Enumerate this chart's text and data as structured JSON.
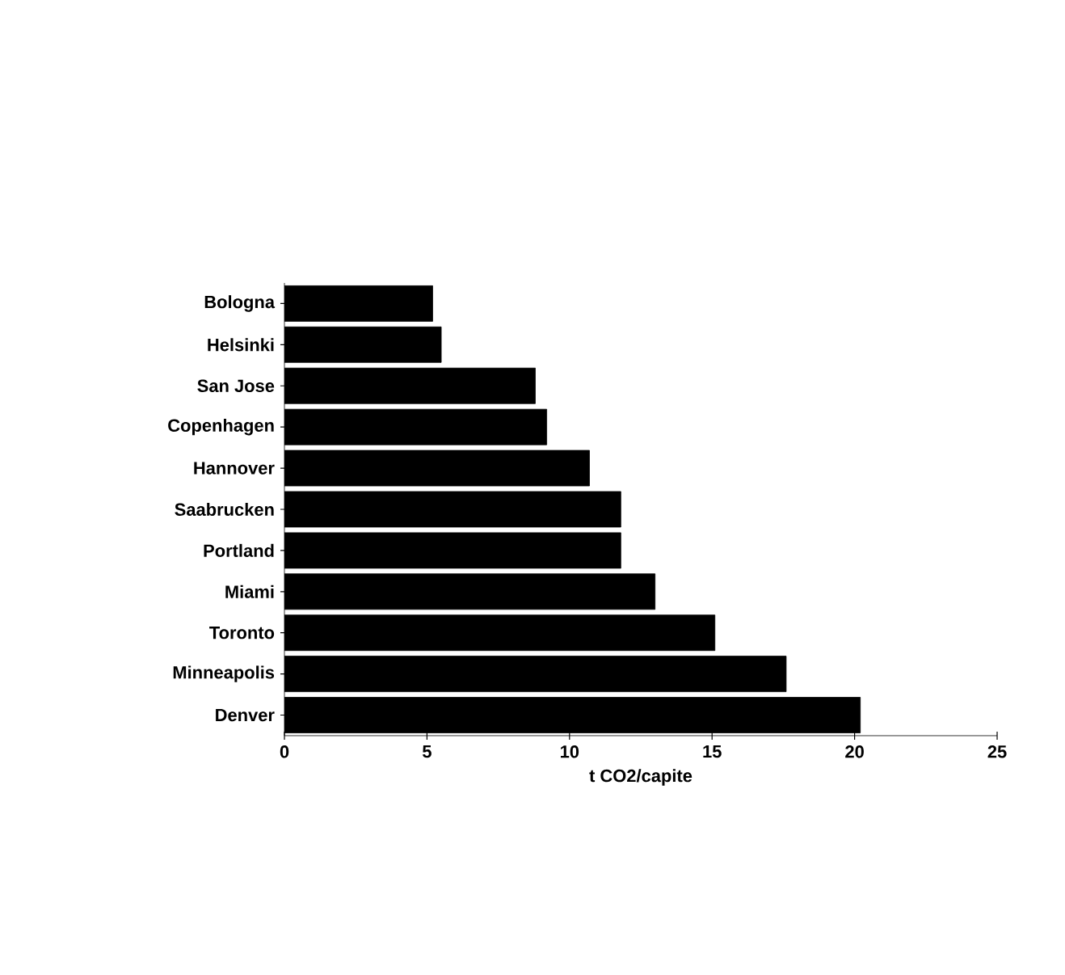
{
  "chart_data": {
    "type": "bar",
    "orientation": "horizontal",
    "xlabel": "t CO2/capite",
    "categories": [
      "Bologna",
      "Helsinki",
      "San Jose",
      "Copenhagen",
      "Hannover",
      "Saabrucken",
      "Portland",
      "Miami",
      "Toronto",
      "Minneapolis",
      "Denver"
    ],
    "values": [
      5.2,
      5.5,
      8.8,
      9.2,
      10.7,
      11.8,
      11.8,
      13.0,
      15.1,
      17.6,
      20.2
    ],
    "color": "#000000",
    "xlim": [
      0,
      25
    ],
    "xticks": [
      0,
      5,
      10,
      15,
      20,
      25
    ]
  }
}
